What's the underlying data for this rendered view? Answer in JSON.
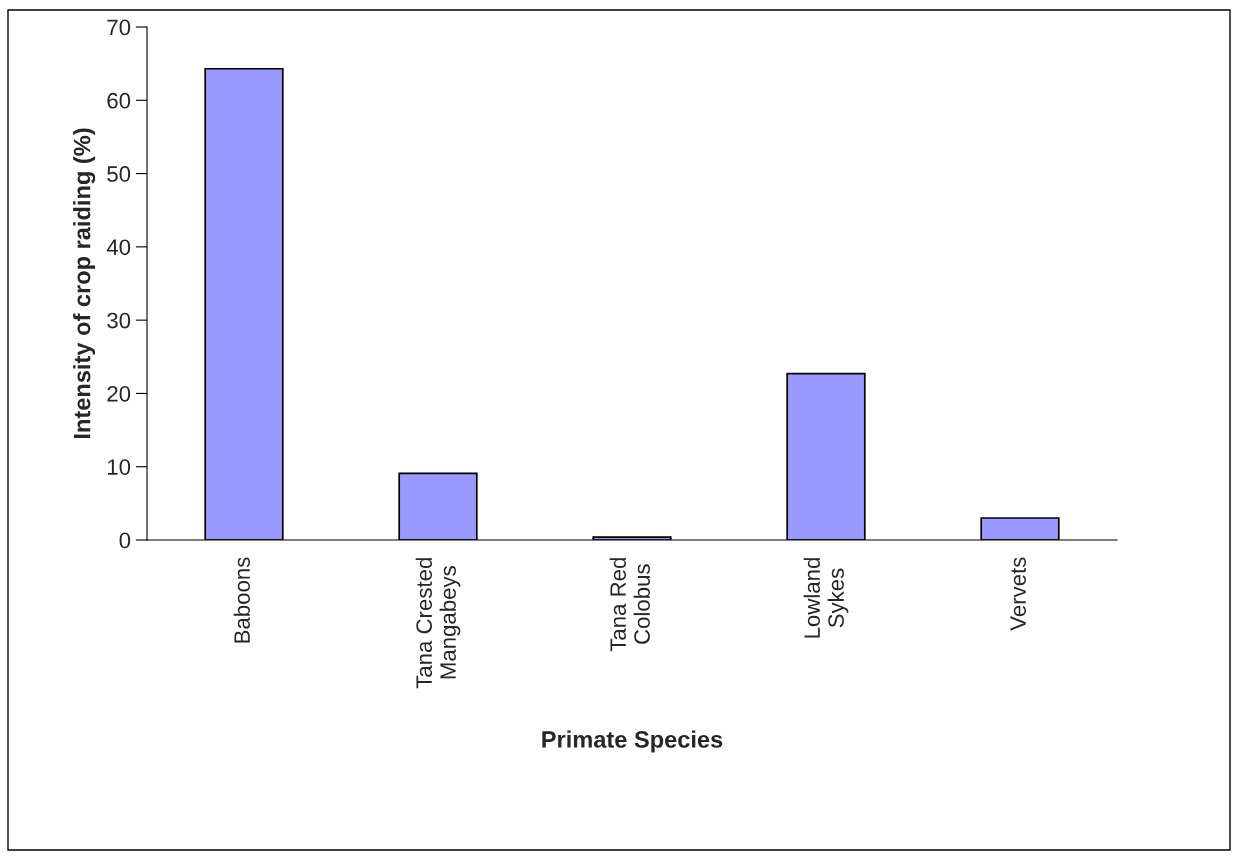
{
  "chart_data": {
    "type": "bar",
    "xlabel": "Primate Species",
    "ylabel": "Intensity of crop raiding (%)",
    "categories": [
      "Baboons",
      "Tana Crested\nMangabeys",
      "Tana Red\nColobus",
      "Lowland\nSykes",
      "Vervets"
    ],
    "values": [
      64.3,
      9.1,
      0.4,
      22.7,
      3.0
    ],
    "color": "#9999ff",
    "ylim": [
      0,
      70
    ],
    "yticks": [
      0,
      10,
      20,
      30,
      40,
      50,
      60,
      70
    ],
    "grid": false,
    "legend": false
  }
}
